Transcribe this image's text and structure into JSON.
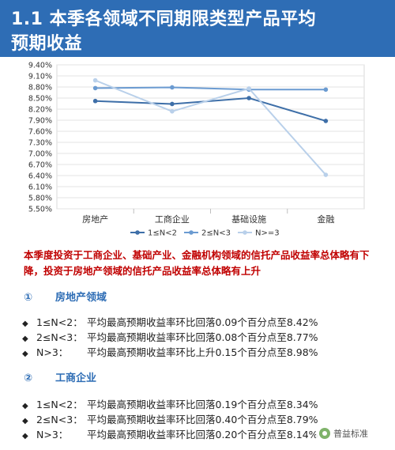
{
  "header": {
    "title_line1": "1.1 本季各领域不同期限类型产品平均",
    "title_line2": "预期收益"
  },
  "chart_data": {
    "type": "line",
    "categories": [
      "房地产",
      "工商企业",
      "基础设施",
      "金融"
    ],
    "series": [
      {
        "name": "1≤N<2",
        "values": [
          8.42,
          8.34,
          8.5,
          7.88
        ],
        "color": "#3e6fa8"
      },
      {
        "name": "2≤N<3",
        "values": [
          8.77,
          8.79,
          8.73,
          8.73
        ],
        "color": "#6b9bd1"
      },
      {
        "name": "N>=3",
        "values": [
          8.98,
          8.14,
          8.76,
          6.42
        ],
        "color": "#b9d0ea"
      }
    ],
    "y_ticks": [
      "9.40%",
      "9.10%",
      "8.80%",
      "8.50%",
      "8.20%",
      "7.90%",
      "7.60%",
      "7.30%",
      "7.00%",
      "6.70%",
      "6.40%",
      "6.10%",
      "5.80%",
      "5.50%"
    ],
    "ylim": [
      5.5,
      9.4
    ],
    "grid": true,
    "legend_position": "bottom"
  },
  "summary": "本季度投资于工商企业、基础产业、金融机构领域的信托产品收益率总体略有下降，投资于房地产领域的信托产品收益率总体略有上升",
  "sections": [
    {
      "num": "①",
      "title": "房地产领域",
      "items": [
        {
          "bullet": "◆",
          "label": "1≤N<2：",
          "text": "平均最高预期收益率环比回落0.09个百分点至8.42%"
        },
        {
          "bullet": "◆",
          "label": "2≤N<3：",
          "text": "平均最高预期收益率环比回落0.08个百分点至8.77%"
        },
        {
          "bullet": "◆",
          "label": "N>3：",
          "text": "平均最高预期收益率环比上升0.15个百分点至8.98%"
        }
      ]
    },
    {
      "num": "②",
      "title": "工商企业",
      "items": [
        {
          "bullet": "◆",
          "label": "1≤N<2：",
          "text": "平均最高预期收益率环比回落0.19个百分点至8.34%"
        },
        {
          "bullet": "◆",
          "label": "2≤N<3：",
          "text": "平均最高预期收益率环比回落0.40个百分点至8.79%"
        },
        {
          "bullet": "◆",
          "label": "N>3：",
          "text": "平均最高预期收益率环比回落0.20个百分点至8.14%"
        }
      ]
    }
  ],
  "watermark": {
    "text": "普益标准",
    "icon": "wechat-icon"
  }
}
